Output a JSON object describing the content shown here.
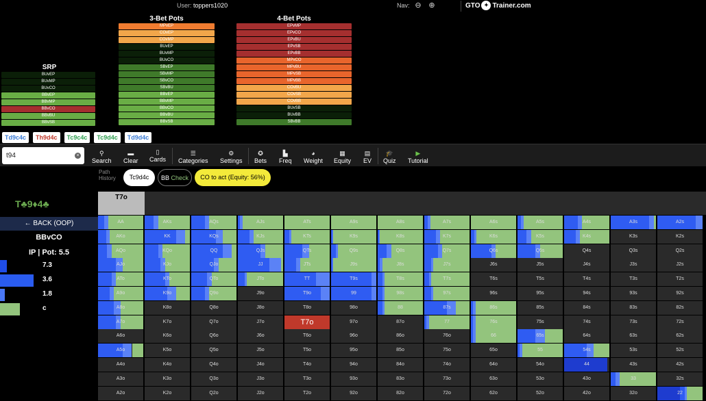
{
  "header": {
    "user_label": "User:",
    "username": "toppers1020",
    "nav_label": "Nav:",
    "brand_left": "GTO",
    "brand_right": "Trainer.com"
  },
  "srp": {
    "title": "SRP",
    "items": [
      {
        "label": "BUvEP",
        "color": "#0b1f08"
      },
      {
        "label": "BUvMP",
        "color": "#0b1f08"
      },
      {
        "label": "BUvCO",
        "color": "#0b1f08"
      },
      {
        "label": "BBvEP",
        "color": "#69ad45"
      },
      {
        "label": "BBvMP",
        "color": "#69ad45"
      },
      {
        "label": "BBvCO",
        "color": "#a52f2f"
      },
      {
        "label": "BBvBU",
        "color": "#69ad45"
      },
      {
        "label": "BBvSB",
        "color": "#69ad45"
      }
    ]
  },
  "three_bet": {
    "title": "3-Bet Pots",
    "items": [
      {
        "label": "MPvEP",
        "color": "#f07c30"
      },
      {
        "label": "COvEP",
        "color": "#f2a64a"
      },
      {
        "label": "COvMP",
        "color": "#f2a64a"
      },
      {
        "label": "BUvEP",
        "color": "#0b1f08"
      },
      {
        "label": "BUvMP",
        "color": "#0b1f08"
      },
      {
        "label": "BUvCO",
        "color": "#0b1f08"
      },
      {
        "label": "SBvEP",
        "color": "#3f7a2a"
      },
      {
        "label": "SBvMP",
        "color": "#3f7a2a"
      },
      {
        "label": "SBvCO",
        "color": "#3f7a2a"
      },
      {
        "label": "SBvBU",
        "color": "#3f7a2a"
      },
      {
        "label": "BBvEP",
        "color": "#69ad45"
      },
      {
        "label": "BBvMP",
        "color": "#69ad45"
      },
      {
        "label": "BBvCO",
        "color": "#69ad45"
      },
      {
        "label": "BBvBU",
        "color": "#69ad45"
      },
      {
        "label": "BBvSB",
        "color": "#69ad45"
      }
    ]
  },
  "four_bet": {
    "title": "4-Bet Pots",
    "items": [
      {
        "label": "EPvMP",
        "color": "#a52f2f"
      },
      {
        "label": "EPvCO",
        "color": "#a52f2f"
      },
      {
        "label": "EPvBU",
        "color": "#a52f2f"
      },
      {
        "label": "EPvSB",
        "color": "#a52f2f"
      },
      {
        "label": "EPvBB",
        "color": "#a52f2f"
      },
      {
        "label": "MPvCO",
        "color": "#e8652c"
      },
      {
        "label": "MPvBU",
        "color": "#e8652c"
      },
      {
        "label": "MPvSB",
        "color": "#e8652c"
      },
      {
        "label": "MPvBB",
        "color": "#e8652c"
      },
      {
        "label": "COvBU",
        "color": "#f2a64a"
      },
      {
        "label": "COvSB",
        "color": "#f2a64a"
      },
      {
        "label": "COvBB",
        "color": "#f2a64a"
      },
      {
        "label": "BUvSB",
        "color": "#0b1f08"
      },
      {
        "label": "BUvBB",
        "color": "#0b1f08"
      },
      {
        "label": "SBvBB",
        "color": "#3f7a2a"
      }
    ]
  },
  "boards": [
    {
      "text": "Td9c4c",
      "color": "#3a7bd5"
    },
    {
      "text": "Th9d4c",
      "color": "#c0392b"
    },
    {
      "text": "Tc9c4c",
      "color": "#2e9e4f"
    },
    {
      "text": "Tc9d4c",
      "color": "#2e9e4f"
    },
    {
      "text": "Td9d4c",
      "color": "#3a7bd5"
    }
  ],
  "search": {
    "value": "t94"
  },
  "toolbar": {
    "search": "Search",
    "clear": "Clear",
    "cards": "Cards",
    "categories": "Categories",
    "settings": "Settings",
    "bets": "Bets",
    "freq": "Freq",
    "weight": "Weight",
    "equity": "Equity",
    "ev": "EV",
    "quiz": "Quiz",
    "tutorial": "Tutorial"
  },
  "history": {
    "label_1": "Path",
    "label_2": "History",
    "board": "Tc9d4c",
    "action_actor": "BB",
    "action_move": "Check",
    "current": "CO to act (Equity: 56%)"
  },
  "left": {
    "board": "T♣9♦4♣",
    "back": "← BACK (OOP)",
    "spot": "BBvCO",
    "pot": "IP | Pot: 5.5",
    "actions": [
      {
        "label": "7.3",
        "frac": 0.07,
        "color": "#1f4de8"
      },
      {
        "label": "3.6",
        "frac": 0.34,
        "color": "#2a5cf0"
      },
      {
        "label": "1.8",
        "frac": 0.05,
        "color": "#4a78f5"
      },
      {
        "label": "c",
        "frac": 0.2,
        "color": "#93c47d"
      }
    ]
  },
  "selected_hand": "T7o",
  "colors": {
    "bet_big": "#1e3ccf",
    "bet_mid": "#2f5cf2",
    "bet_small": "#5b82f6",
    "check": "#93c47d",
    "fold": "#2a2a2a",
    "selected": "#c0392b"
  },
  "ranks": [
    "A",
    "K",
    "Q",
    "J",
    "T",
    "9",
    "8",
    "7",
    "6",
    "5",
    "4",
    "3",
    "2"
  ],
  "hands": [
    [
      [
        0,
        0.14,
        0.08,
        0.78
      ],
      [
        0,
        0.2,
        0.1,
        0.7
      ],
      [
        0,
        0.3,
        0.1,
        0.6
      ],
      [
        0,
        0.05,
        0.05,
        0.9
      ],
      [
        0,
        0,
        0,
        1
      ],
      [
        0,
        0,
        0,
        1
      ],
      [
        0,
        0,
        0,
        1
      ],
      [
        0,
        0.08,
        0.05,
        0.87
      ],
      [
        0,
        0,
        0,
        1
      ],
      [
        0,
        0.07,
        0.06,
        0.87
      ],
      [
        0,
        0.3,
        0.1,
        0.6
      ],
      [
        0,
        0.85,
        0.1,
        0.05
      ],
      [
        0,
        0.85,
        0.15,
        0
      ]
    ],
    [
      [
        0,
        0.18,
        0.08,
        0.74
      ],
      [
        0,
        0.7,
        0.2,
        0.1
      ],
      [
        0,
        0.55,
        0.15,
        0.3
      ],
      [
        0,
        0.25,
        0.1,
        0.65
      ],
      [
        0,
        0.1,
        0.05,
        0.85
      ],
      [
        0,
        0.03,
        0.02,
        0.95
      ],
      [
        0,
        0.03,
        0.02,
        0.95
      ],
      [
        0,
        0.25,
        0.1,
        0.65
      ],
      [
        0,
        0.07,
        0.05,
        0.88
      ],
      [
        0,
        0.2,
        0.1,
        0.7
      ],
      [
        0,
        0.25,
        0.1,
        0.65
      ],
      [
        0,
        0,
        0,
        0
      ],
      [
        0,
        0,
        0,
        0
      ]
    ],
    [
      [
        0,
        0.2,
        0.1,
        0.7
      ],
      [
        0,
        0.3,
        0.1,
        0.6
      ],
      [
        0,
        0.7,
        0.2,
        0.1
      ],
      [
        0,
        0.5,
        0.1,
        0.4
      ],
      [
        0,
        0.4,
        0.15,
        0.45
      ],
      [
        0,
        0.1,
        0.05,
        0.85
      ],
      [
        0,
        0.2,
        0.1,
        0.7
      ],
      [
        0,
        0.3,
        0.1,
        0.6
      ],
      [
        0,
        0.45,
        0.1,
        0.45
      ],
      [
        0,
        0.4,
        0.1,
        0.5
      ],
      [
        0,
        0,
        0,
        0
      ],
      [
        0,
        0,
        0,
        0
      ],
      [
        0,
        0,
        0,
        0
      ]
    ],
    [
      [
        0,
        0.4,
        0.15,
        0.45
      ],
      [
        0,
        0.35,
        0.1,
        0.55
      ],
      [
        0,
        0.5,
        0.1,
        0.4
      ],
      [
        0,
        0.7,
        0.25,
        0.05
      ],
      [
        0,
        0.25,
        0.1,
        0.65
      ],
      [
        0,
        0.03,
        0.02,
        0.95
      ],
      [
        0,
        0.05,
        0.05,
        0.9
      ],
      [
        0,
        0.15,
        0.05,
        0.8
      ],
      [
        0,
        0,
        0,
        0
      ],
      [
        0,
        0,
        0,
        0
      ],
      [
        0,
        0,
        0,
        0
      ],
      [
        0,
        0,
        0,
        0
      ],
      [
        0,
        0,
        0,
        0
      ]
    ],
    [
      [
        0,
        0.3,
        0.1,
        0.6
      ],
      [
        0,
        0.45,
        0.1,
        0.45
      ],
      [
        0,
        0.35,
        0.1,
        0.55
      ],
      [
        0,
        0.15,
        0.05,
        0.8
      ],
      [
        0,
        0.7,
        0.3,
        0
      ],
      [
        0,
        0.9,
        0.1,
        0
      ],
      [
        0,
        0.1,
        0.05,
        0.85
      ],
      [
        0,
        0.1,
        0.05,
        0.85
      ],
      [
        0,
        0,
        0,
        0
      ],
      [
        0,
        0,
        0,
        0
      ],
      [
        0,
        0,
        0,
        0
      ],
      [
        0,
        0,
        0,
        0
      ],
      [
        0,
        0,
        0,
        0
      ]
    ],
    [
      [
        0,
        0.25,
        0.1,
        0.65
      ],
      [
        0,
        0.5,
        0.2,
        0.3
      ],
      [
        0,
        0.3,
        0.1,
        0.6
      ],
      [
        0,
        0,
        0,
        0
      ],
      [
        0,
        0.8,
        0.2,
        0
      ],
      [
        0,
        0.9,
        0.1,
        0
      ],
      [
        0,
        0.1,
        0.05,
        0.85
      ],
      [
        0,
        0.15,
        0.05,
        0.8
      ],
      [
        0,
        0,
        0,
        0
      ],
      [
        0,
        0,
        0,
        0
      ],
      [
        0,
        0,
        0,
        0
      ],
      [
        0,
        0,
        0,
        0
      ],
      [
        0,
        0,
        0,
        0
      ]
    ],
    [
      [
        0,
        0.35,
        0.15,
        0.5
      ],
      [
        0,
        0,
        0,
        0
      ],
      [
        0,
        0,
        0,
        0
      ],
      [
        0,
        0,
        0,
        0
      ],
      [
        0,
        0,
        0,
        0
      ],
      [
        0,
        0,
        0,
        0
      ],
      [
        0,
        0.1,
        0.05,
        0.85
      ],
      [
        0,
        0.5,
        0.2,
        0.3
      ],
      [
        0,
        0.05,
        0.05,
        0.9
      ],
      [
        0,
        0,
        0,
        0
      ],
      [
        0,
        0,
        0,
        0
      ],
      [
        0,
        0,
        0,
        0
      ],
      [
        0,
        0,
        0,
        0
      ]
    ],
    [
      [
        0,
        0.4,
        0.1,
        0.5
      ],
      [
        0,
        0,
        0,
        0
      ],
      [
        0,
        0,
        0,
        0
      ],
      [
        0,
        0,
        0,
        0
      ],
      [
        0,
        0,
        0,
        0
      ],
      [
        0,
        0,
        0,
        0
      ],
      [
        0,
        0,
        0,
        0
      ],
      [
        0,
        0.05,
        0.05,
        0.9
      ],
      [
        0,
        0.05,
        0.05,
        0.9
      ],
      [
        0,
        0,
        0,
        0
      ],
      [
        0,
        0,
        0,
        0
      ],
      [
        0,
        0,
        0,
        0
      ],
      [
        0,
        0,
        0,
        0
      ]
    ],
    [
      [
        0,
        0,
        0,
        0
      ],
      [
        0,
        0,
        0,
        0
      ],
      [
        0,
        0,
        0,
        0
      ],
      [
        0,
        0,
        0,
        0
      ],
      [
        0,
        0,
        0,
        0
      ],
      [
        0,
        0,
        0,
        0
      ],
      [
        0,
        0,
        0,
        0
      ],
      [
        0,
        0,
        0,
        0
      ],
      [
        0,
        0.05,
        0.05,
        0.9
      ],
      [
        0,
        0.4,
        0.2,
        0.4
      ],
      [
        0,
        0,
        0,
        0
      ],
      [
        0,
        0,
        0,
        0
      ],
      [
        0,
        0,
        0,
        0
      ]
    ],
    [
      [
        0,
        0.55,
        0.2,
        0.25
      ],
      [
        0,
        0,
        0,
        0
      ],
      [
        0,
        0,
        0,
        0
      ],
      [
        0,
        0,
        0,
        0
      ],
      [
        0,
        0,
        0,
        0
      ],
      [
        0,
        0,
        0,
        0
      ],
      [
        0,
        0,
        0,
        0
      ],
      [
        0,
        0,
        0,
        0
      ],
      [
        0,
        0,
        0,
        0
      ],
      [
        0,
        0.05,
        0.05,
        0.9
      ],
      [
        0,
        0.5,
        0.15,
        0.35
      ],
      [
        0,
        0,
        0,
        0
      ],
      [
        0,
        0,
        0,
        0
      ]
    ],
    [
      [
        0,
        0,
        0,
        0
      ],
      [
        0,
        0,
        0,
        0
      ],
      [
        0,
        0,
        0,
        0
      ],
      [
        0,
        0,
        0,
        0
      ],
      [
        0,
        0,
        0,
        0
      ],
      [
        0,
        0,
        0,
        0
      ],
      [
        0,
        0,
        0,
        0
      ],
      [
        0,
        0,
        0,
        0
      ],
      [
        0,
        0,
        0,
        0
      ],
      [
        0,
        0,
        0,
        0
      ],
      [
        0.95,
        0,
        0,
        0
      ],
      [
        0,
        0,
        0,
        0
      ],
      [
        0,
        0,
        0,
        0
      ]
    ],
    [
      [
        0,
        0,
        0,
        0
      ],
      [
        0,
        0,
        0,
        0
      ],
      [
        0,
        0,
        0,
        0
      ],
      [
        0,
        0,
        0,
        0
      ],
      [
        0,
        0,
        0,
        0
      ],
      [
        0,
        0,
        0,
        0
      ],
      [
        0,
        0,
        0,
        0
      ],
      [
        0,
        0,
        0,
        0
      ],
      [
        0,
        0,
        0,
        0
      ],
      [
        0,
        0,
        0,
        0
      ],
      [
        0,
        0,
        0,
        0
      ],
      [
        0,
        0.1,
        0.1,
        0.8
      ],
      [
        0,
        0,
        0,
        0
      ]
    ],
    [
      [
        0,
        0,
        0,
        0
      ],
      [
        0,
        0,
        0,
        0
      ],
      [
        0,
        0,
        0,
        0
      ],
      [
        0,
        0,
        0,
        0
      ],
      [
        0,
        0,
        0,
        0
      ],
      [
        0,
        0,
        0,
        0
      ],
      [
        0,
        0,
        0,
        0
      ],
      [
        0,
        0,
        0,
        0
      ],
      [
        0,
        0,
        0,
        0
      ],
      [
        0,
        0,
        0,
        0
      ],
      [
        0,
        0,
        0,
        0
      ],
      [
        0,
        0,
        0,
        0
      ],
      [
        0.5,
        0.1,
        0.05,
        0.35
      ]
    ]
  ]
}
